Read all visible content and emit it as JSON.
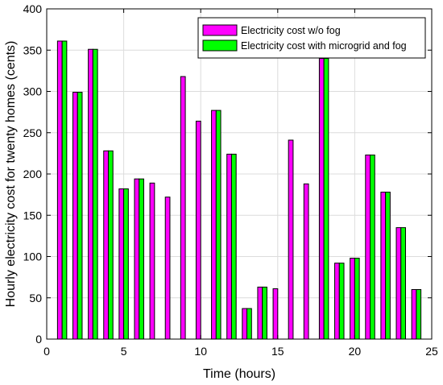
{
  "chart_data": {
    "type": "bar",
    "xlabel": "Time (hours)",
    "ylabel": "Hourly electricity cost for twenty homes (cents)",
    "xlim": [
      0,
      25
    ],
    "ylim": [
      0,
      400
    ],
    "xticks": [
      0,
      5,
      10,
      15,
      20,
      25
    ],
    "yticks": [
      0,
      50,
      100,
      150,
      200,
      250,
      300,
      350,
      400
    ],
    "grid": true,
    "legend_position": "top-right",
    "categories": [
      1,
      2,
      3,
      4,
      5,
      6,
      7,
      8,
      9,
      10,
      11,
      12,
      13,
      14,
      15,
      16,
      17,
      18,
      19,
      20,
      21,
      22,
      23,
      24
    ],
    "series": [
      {
        "name": "Electricity cost w/o fog",
        "color": "#ff00ff",
        "values": [
          361,
          299,
          351,
          228,
          182,
          194,
          189,
          172,
          318,
          264,
          277,
          224,
          37,
          63,
          61,
          241,
          188,
          340,
          92,
          98,
          223,
          178,
          135,
          60
        ]
      },
      {
        "name": "Electricity cost with microgrid and fog",
        "color": "#00ff00",
        "values": [
          361,
          299,
          351,
          228,
          182,
          194,
          0,
          0,
          0,
          0,
          277,
          224,
          37,
          63,
          0,
          0,
          0,
          340,
          92,
          98,
          223,
          178,
          135,
          60
        ]
      }
    ]
  }
}
